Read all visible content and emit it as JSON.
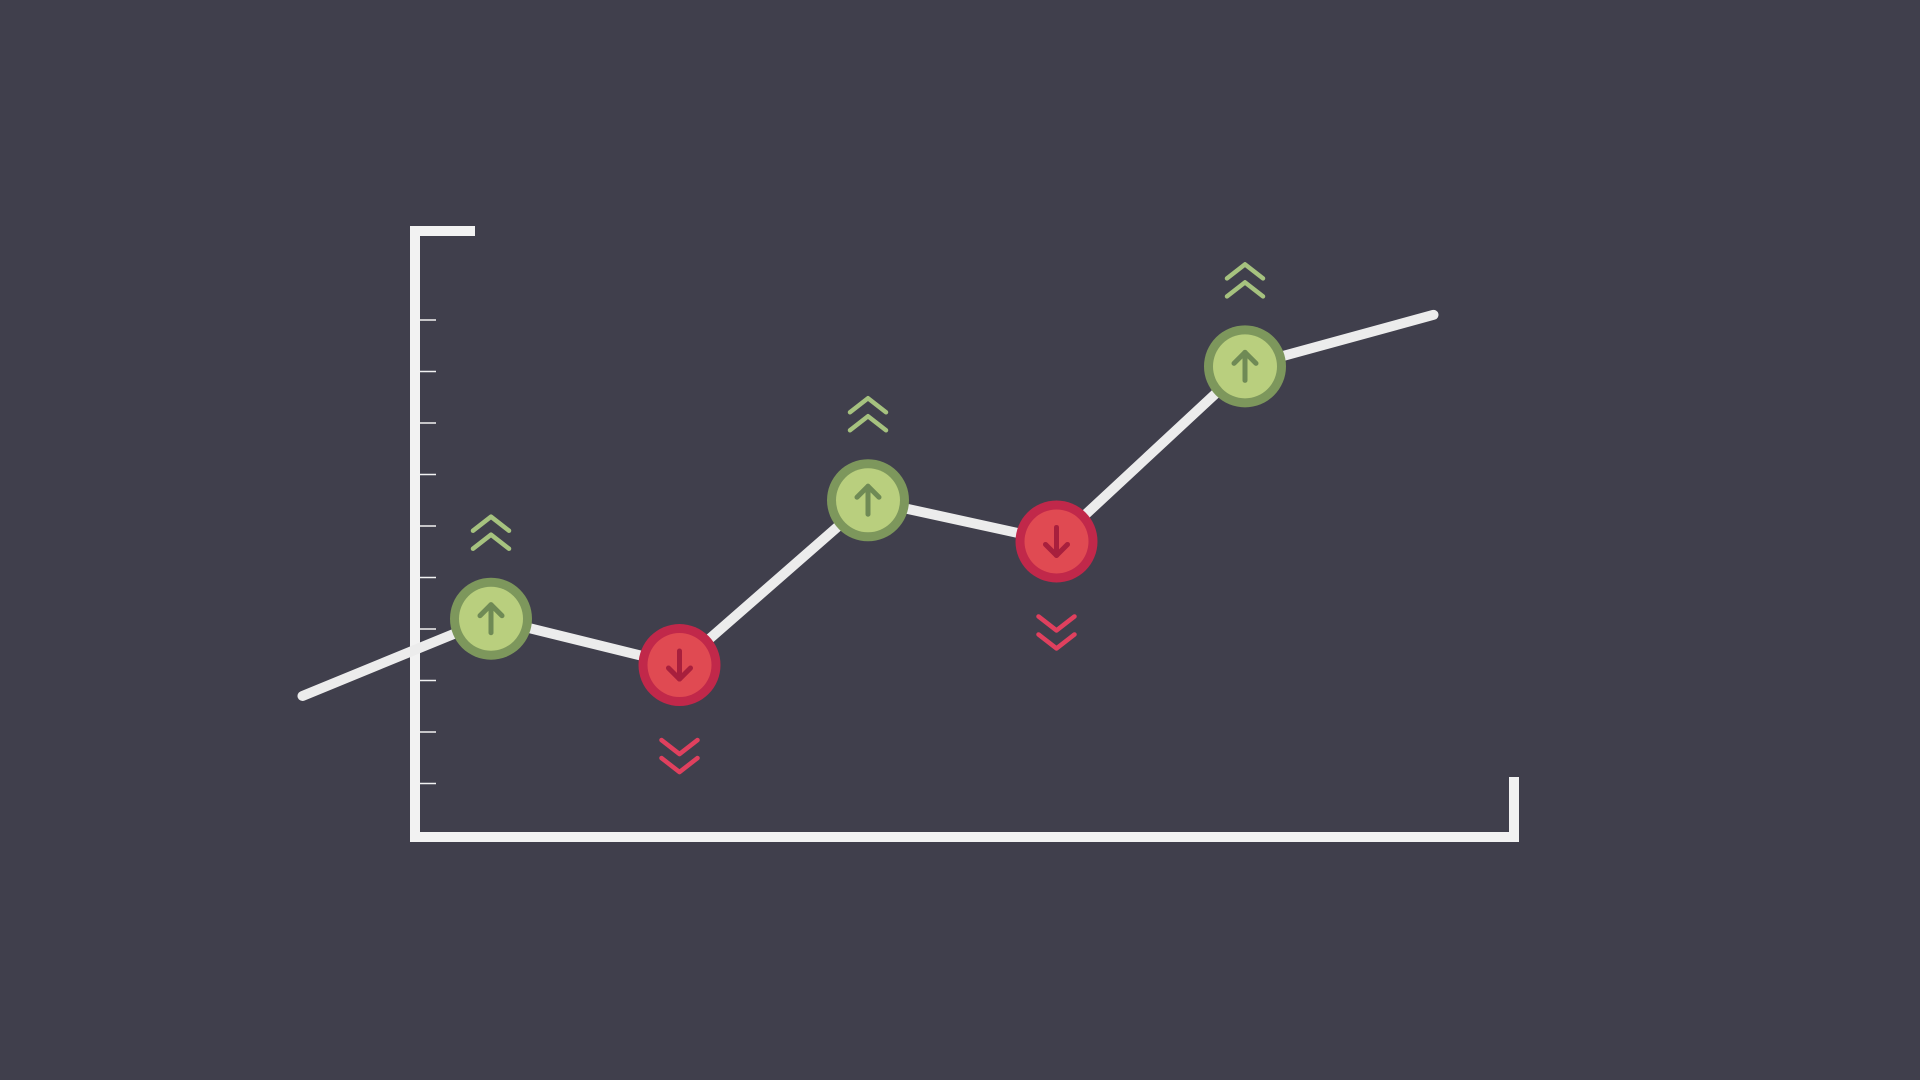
{
  "colors": {
    "background": "#403f4c",
    "axis": "#f2f2f2",
    "line": "#ececec",
    "up_fill": "#b9cf7e",
    "up_ring": "#7d975c",
    "up_arrow": "#6f8a55",
    "up_chevron": "#a6c27f",
    "down_fill": "#e04a52",
    "down_ring": "#c1284a",
    "down_arrow": "#a81f3d",
    "down_chevron": "#e0405e"
  },
  "chart_data": {
    "type": "line",
    "title": "",
    "xlabel": "",
    "ylabel": "",
    "grid": false,
    "x": [
      0,
      1,
      2,
      3,
      4,
      5,
      6
    ],
    "ylim": [
      0,
      11
    ],
    "series": [
      {
        "values": [
          2.7,
          4.2,
          3.3,
          6.5,
          5.7,
          9.1,
          10.1
        ]
      }
    ],
    "markers": [
      {
        "x": 1,
        "direction": "up",
        "icon": "arrow-up-icon"
      },
      {
        "x": 2,
        "direction": "down",
        "icon": "arrow-down-icon"
      },
      {
        "x": 3,
        "direction": "up",
        "icon": "arrow-up-icon"
      },
      {
        "x": 4,
        "direction": "down",
        "icon": "arrow-down-icon"
      },
      {
        "x": 5,
        "direction": "up",
        "icon": "arrow-up-icon"
      }
    ],
    "y_ticks": [
      1,
      2,
      3,
      4,
      5,
      6,
      7,
      8,
      9,
      10
    ]
  }
}
